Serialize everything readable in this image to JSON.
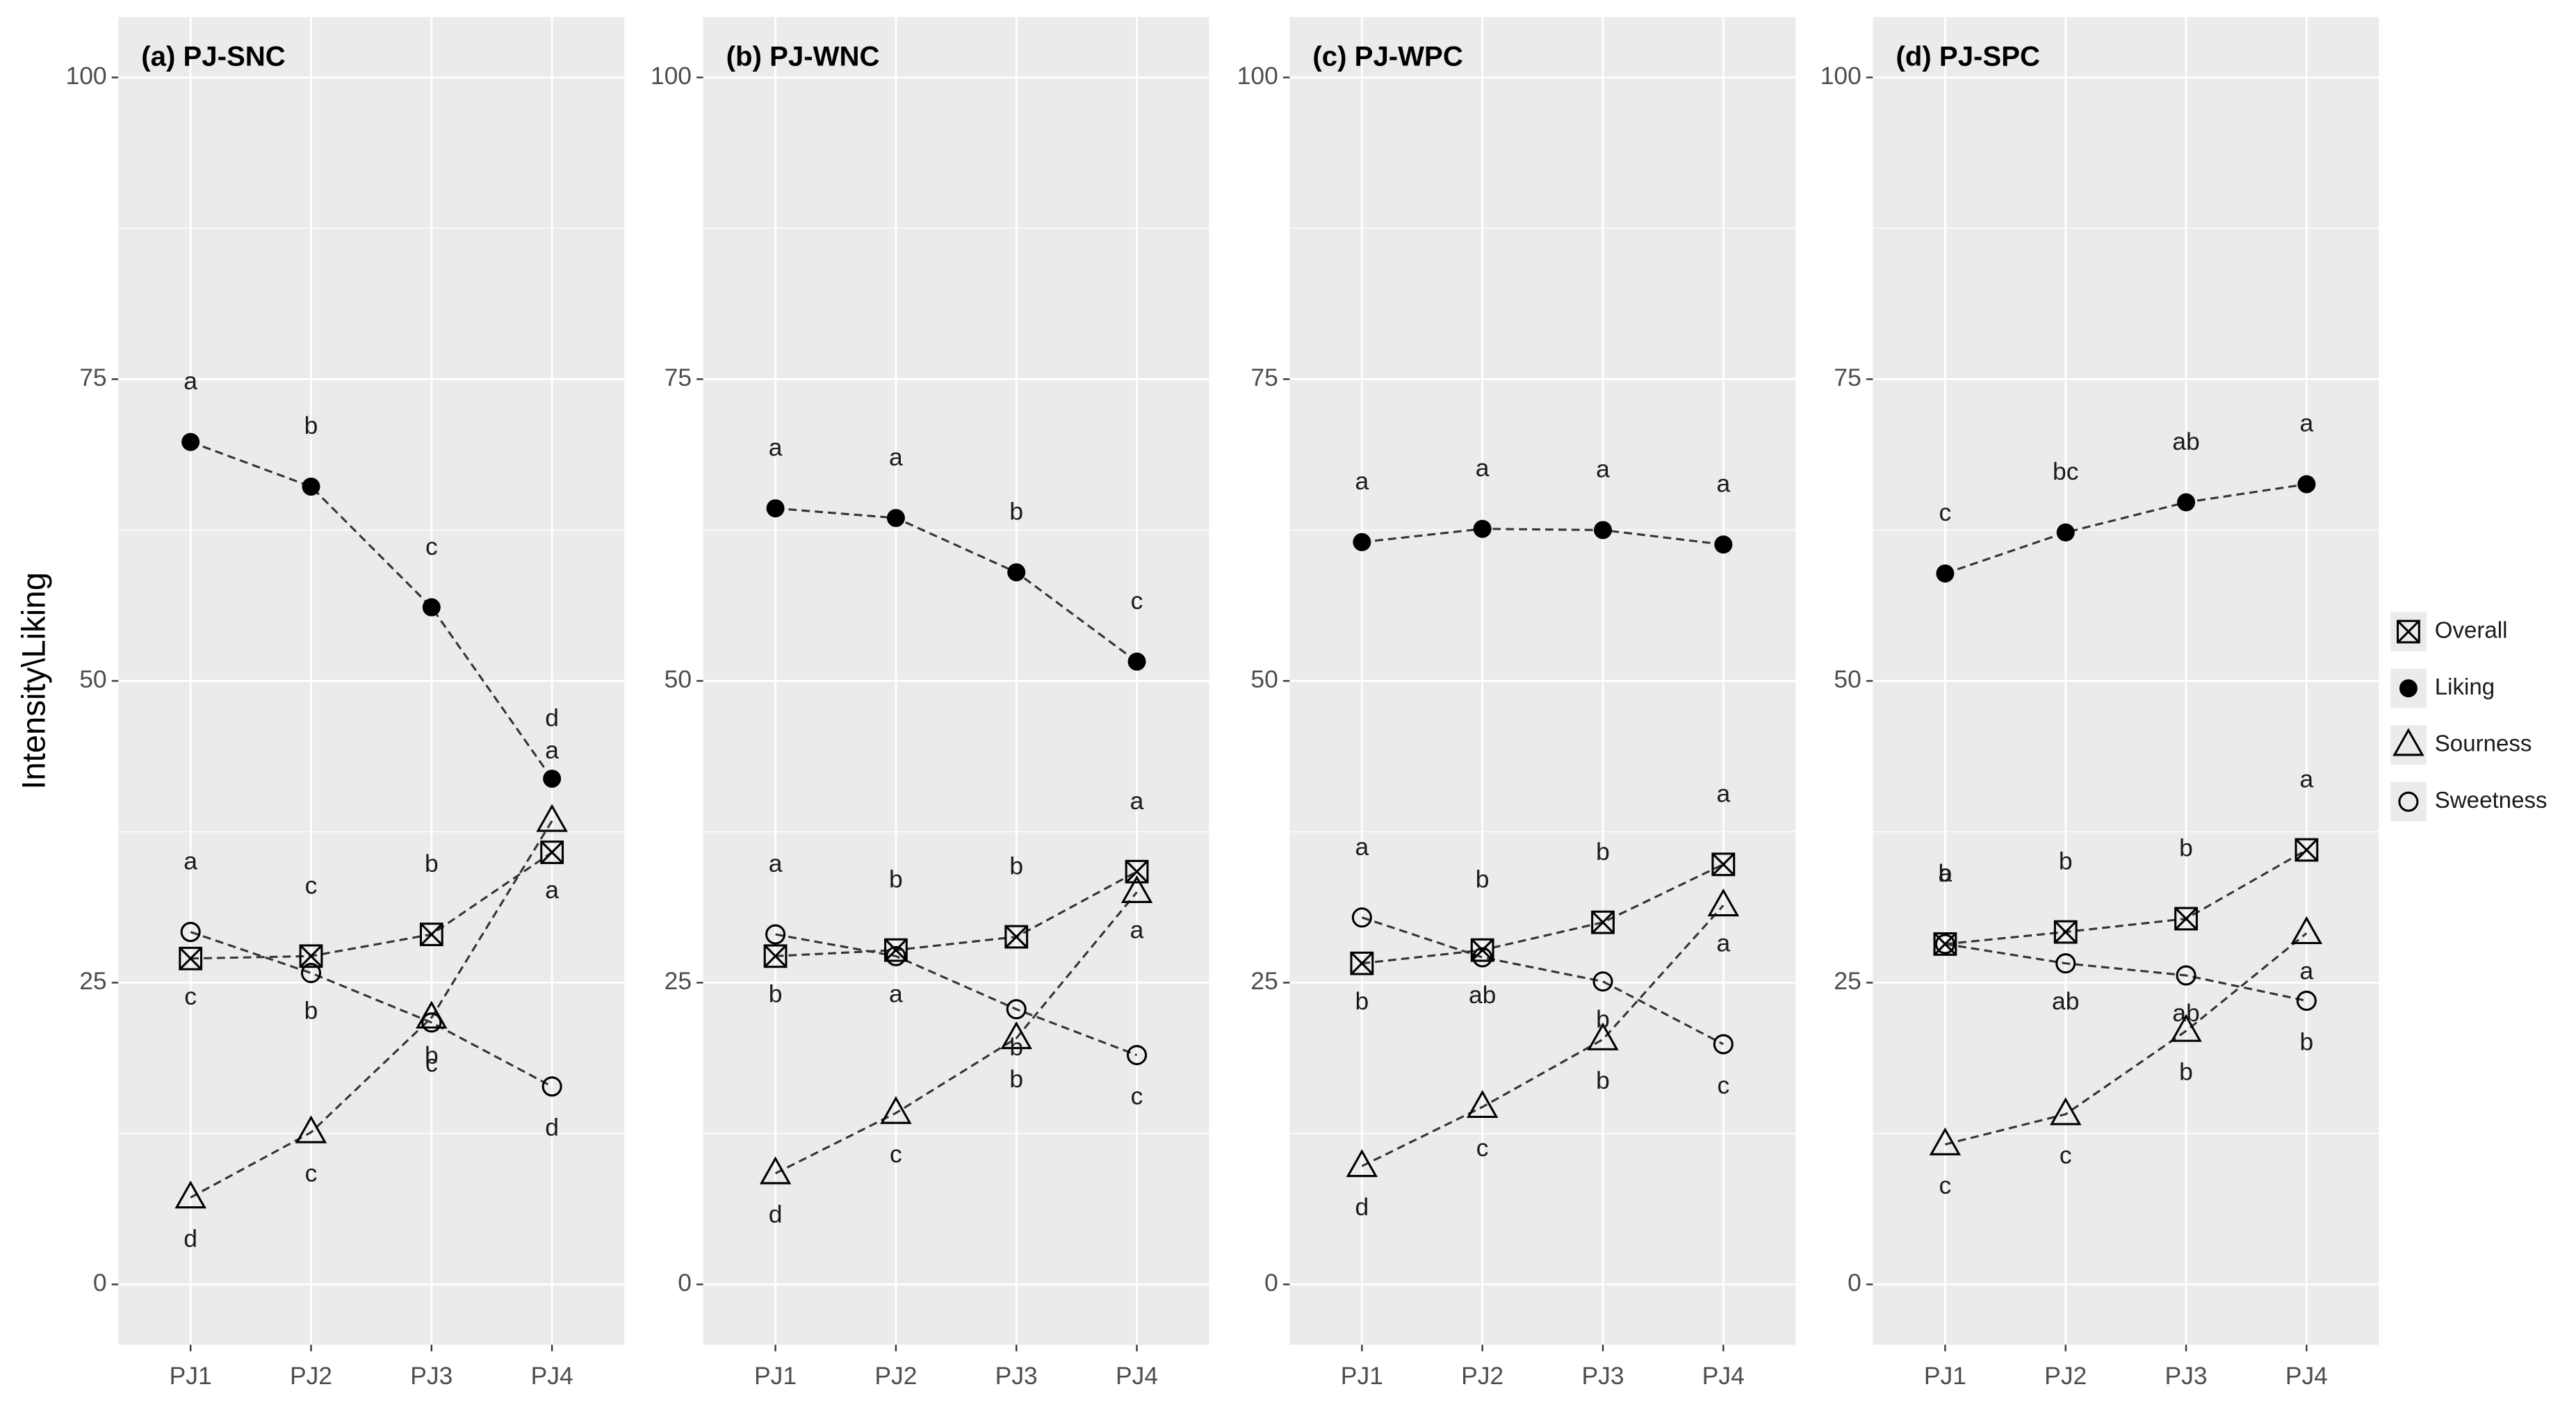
{
  "chart_data": [
    {
      "type": "line",
      "title": "(a) PJ-SNC",
      "ylabel": "Intensity\\Liking",
      "categories": [
        "PJ1",
        "PJ2",
        "PJ3",
        "PJ4"
      ],
      "ylim": [
        -5,
        105
      ],
      "yticks": [
        0,
        25,
        50,
        75,
        100
      ],
      "grid": true,
      "series": [
        {
          "name": "Overall",
          "marker": "square-cross",
          "color": "#000000",
          "values": [
            27.0,
            27.2,
            29.0,
            35.8
          ],
          "letters": [
            "c",
            "c",
            "b",
            "a"
          ]
        },
        {
          "name": "Liking",
          "marker": "filled-circle",
          "color": "#000000",
          "values": [
            69.8,
            66.1,
            56.1,
            41.9
          ],
          "letters": [
            "a",
            "b",
            "c",
            "d"
          ]
        },
        {
          "name": "Sourness",
          "marker": "triangle",
          "color": "#000000",
          "values": [
            7.2,
            12.6,
            22.1,
            38.4
          ],
          "letters": [
            "d",
            "c",
            "b",
            "a"
          ]
        },
        {
          "name": "Sweetness",
          "marker": "circle",
          "color": "#000000",
          "values": [
            29.2,
            25.8,
            21.7,
            16.4
          ],
          "letters": [
            "a",
            "b",
            "c",
            "d"
          ]
        }
      ]
    },
    {
      "type": "line",
      "title": "(b) PJ-WNC",
      "categories": [
        "PJ1",
        "PJ2",
        "PJ3",
        "PJ4"
      ],
      "ylim": [
        -5,
        105
      ],
      "yticks": [
        0,
        25,
        50,
        75,
        100
      ],
      "grid": true,
      "series": [
        {
          "name": "Overall",
          "marker": "square-cross",
          "color": "#000000",
          "values": [
            27.2,
            27.7,
            28.8,
            34.2
          ],
          "letters": [
            "b",
            "b",
            "b",
            "a"
          ]
        },
        {
          "name": "Liking",
          "marker": "filled-circle",
          "color": "#000000",
          "values": [
            64.3,
            63.5,
            59.0,
            51.6
          ],
          "letters": [
            "a",
            "a",
            "b",
            "c"
          ]
        },
        {
          "name": "Sourness",
          "marker": "triangle",
          "color": "#000000",
          "values": [
            9.2,
            14.2,
            20.4,
            32.5
          ],
          "letters": [
            "d",
            "c",
            "b",
            "a"
          ]
        },
        {
          "name": "Sweetness",
          "marker": "circle",
          "color": "#000000",
          "values": [
            29.0,
            27.2,
            22.8,
            19.0
          ],
          "letters": [
            "a",
            "a",
            "b",
            "c"
          ]
        }
      ]
    },
    {
      "type": "line",
      "title": "(c) PJ-WPC",
      "categories": [
        "PJ1",
        "PJ2",
        "PJ3",
        "PJ4"
      ],
      "ylim": [
        -5,
        105
      ],
      "yticks": [
        0,
        25,
        50,
        75,
        100
      ],
      "grid": true,
      "series": [
        {
          "name": "Overall",
          "marker": "square-cross",
          "color": "#000000",
          "values": [
            26.6,
            27.7,
            30.0,
            34.8
          ],
          "letters": [
            "b",
            "b",
            "b",
            "a"
          ]
        },
        {
          "name": "Liking",
          "marker": "filled-circle",
          "color": "#000000",
          "values": [
            61.5,
            62.6,
            62.5,
            61.3
          ],
          "letters": [
            "a",
            "a",
            "a",
            "a"
          ]
        },
        {
          "name": "Sourness",
          "marker": "triangle",
          "color": "#000000",
          "values": [
            9.8,
            14.7,
            20.3,
            31.4
          ],
          "letters": [
            "d",
            "c",
            "b",
            "a"
          ]
        },
        {
          "name": "Sweetness",
          "marker": "circle",
          "color": "#000000",
          "values": [
            30.4,
            27.1,
            25.1,
            19.9
          ],
          "letters": [
            "a",
            "ab",
            "b",
            "c"
          ]
        }
      ]
    },
    {
      "type": "line",
      "title": "(d) PJ-SPC",
      "categories": [
        "PJ1",
        "PJ2",
        "PJ3",
        "PJ4"
      ],
      "ylim": [
        -5,
        105
      ],
      "yticks": [
        0,
        25,
        50,
        75,
        100
      ],
      "grid": true,
      "series": [
        {
          "name": "Overall",
          "marker": "square-cross",
          "color": "#000000",
          "values": [
            28.2,
            29.2,
            30.3,
            36.0
          ],
          "letters": [
            "b",
            "b",
            "b",
            "a"
          ]
        },
        {
          "name": "Liking",
          "marker": "filled-circle",
          "color": "#000000",
          "values": [
            58.9,
            62.3,
            64.8,
            66.3
          ],
          "letters": [
            "c",
            "bc",
            "ab",
            "a"
          ]
        },
        {
          "name": "Sourness",
          "marker": "triangle",
          "color": "#000000",
          "values": [
            11.6,
            14.1,
            21.0,
            29.1
          ],
          "letters": [
            "c",
            "c",
            "b",
            "a"
          ]
        },
        {
          "name": "Sweetness",
          "marker": "circle",
          "color": "#000000",
          "values": [
            28.2,
            26.6,
            25.6,
            23.5
          ],
          "letters": [
            "a",
            "ab",
            "ab",
            "b"
          ]
        }
      ]
    }
  ]
}
